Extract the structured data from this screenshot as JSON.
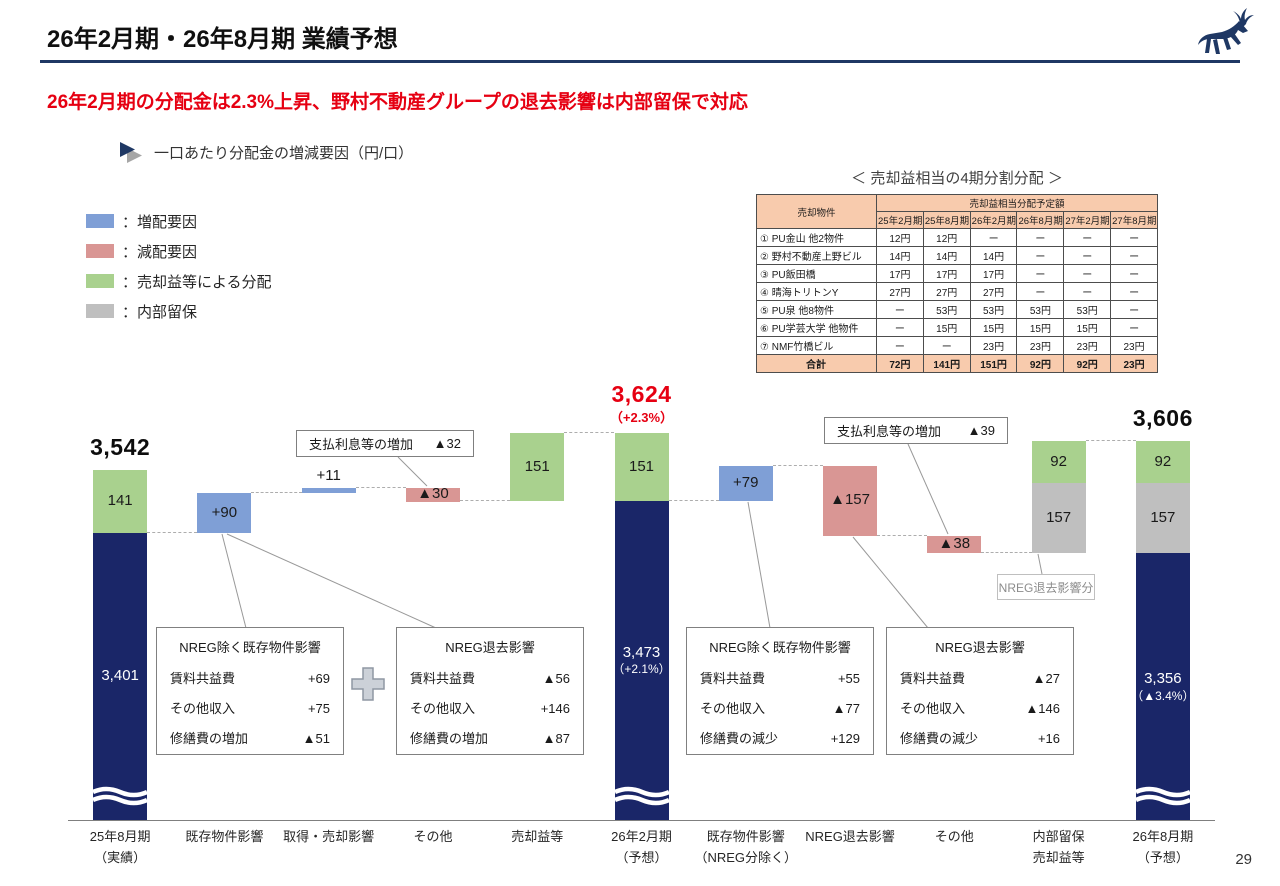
{
  "page": {
    "title": "26年2月期・26年8月期 業績予想",
    "subtitle": "26年2月期の分配金は2.3%上昇、野村不動産グループの退去影響は内部留保で対応",
    "page_number": "29"
  },
  "icons": {
    "logo": "deer-logo",
    "caption_marker": "arrow-right-icon",
    "combine": "plus-icon"
  },
  "chart_header": {
    "label": "一口あたり分配金の増減要因（円/口）"
  },
  "legend": [
    {
      "label": "：増配要因",
      "color": "#7f9fd6"
    },
    {
      "label": "：減配要因",
      "color": "#d99694"
    },
    {
      "label": "：売却益等による分配",
      "color": "#a9d18e"
    },
    {
      "label": "：内部留保",
      "color": "#bfbfbf"
    }
  ],
  "table": {
    "title": "＜ 売却益相当の4期分割分配 ＞",
    "header_property": "売却物件",
    "header_group": "売却益相当分配予定額",
    "periods": [
      "25年2月期",
      "25年8月期",
      "26年2月期",
      "26年8月期",
      "27年2月期",
      "27年8月期"
    ],
    "rows": [
      {
        "name": "① PU金山 他2物件",
        "values": [
          "12円",
          "12円",
          "ー",
          "ー",
          "ー",
          "ー"
        ]
      },
      {
        "name": "② 野村不動産上野ビル",
        "values": [
          "14円",
          "14円",
          "14円",
          "ー",
          "ー",
          "ー"
        ]
      },
      {
        "name": "③ PU飯田橋",
        "values": [
          "17円",
          "17円",
          "17円",
          "ー",
          "ー",
          "ー"
        ]
      },
      {
        "name": "④ 晴海トリトンY",
        "values": [
          "27円",
          "27円",
          "27円",
          "ー",
          "ー",
          "ー"
        ]
      },
      {
        "name": "⑤ PU泉 他8物件",
        "values": [
          "ー",
          "53円",
          "53円",
          "53円",
          "53円",
          "ー"
        ]
      },
      {
        "name": "⑥ PU学芸大学 他物件",
        "values": [
          "ー",
          "15円",
          "15円",
          "15円",
          "15円",
          "ー"
        ]
      },
      {
        "name": "⑦ NMF竹橋ビル",
        "values": [
          "ー",
          "ー",
          "23円",
          "23円",
          "23円",
          "23円"
        ]
      }
    ],
    "total": {
      "name": "合計",
      "values": [
        "72円",
        "141円",
        "151円",
        "92円",
        "92円",
        "23円"
      ]
    }
  },
  "chart_data": {
    "type": "bar",
    "subtype": "waterfall-stacked",
    "unit": "円/口",
    "axis_break": true,
    "colors": {
      "navy": "#1a2668",
      "blue": "#7f9fd6",
      "pink": "#d99694",
      "green": "#a9d18e",
      "gray": "#bfbfbf"
    },
    "columns": [
      {
        "id": "fy25aug-actual",
        "x_label": [
          "25年8月期",
          "（実績）"
        ],
        "total_label": "3,542",
        "segments": [
          {
            "color": "green",
            "from": 3401,
            "to": 3542,
            "label": "141"
          },
          {
            "color": "navy",
            "from": 3401,
            "to_axis": true,
            "label": "3,401",
            "break": true
          }
        ]
      },
      {
        "id": "existing-impact",
        "x_label": [
          "既存物件影響"
        ],
        "segments": [
          {
            "color": "blue",
            "from": 3401,
            "to": 3491,
            "label": "+90"
          }
        ]
      },
      {
        "id": "acq-sale-impact",
        "x_label": [
          "取得・売却影響"
        ],
        "segments": [
          {
            "color": "blue",
            "from": 3491,
            "to": 3502,
            "label": "+11",
            "label_above": true
          }
        ]
      },
      {
        "id": "other-1",
        "x_label": [
          "その他"
        ],
        "segments": [
          {
            "color": "pink",
            "from": 3502,
            "to": 3472,
            "label": "▲30"
          }
        ]
      },
      {
        "id": "gain-distribution-1",
        "x_label": [
          "売却益等"
        ],
        "segments": [
          {
            "color": "green",
            "from": 3473,
            "to": 3624,
            "label": "151"
          }
        ]
      },
      {
        "id": "fy26feb-forecast",
        "x_label": [
          "26年2月期",
          "（予想）"
        ],
        "total_label": "3,624",
        "total_sub": "（+2.3%）",
        "total_color": "red",
        "segments": [
          {
            "color": "green",
            "from": 3473,
            "to": 3624,
            "label": "151"
          },
          {
            "color": "navy",
            "from": 3473,
            "to_axis": true,
            "label": "3,473\n（+2.1%）",
            "break": true
          }
        ]
      },
      {
        "id": "existing-impact-ex-nreg",
        "x_label": [
          "既存物件影響",
          "（NREG分除く）"
        ],
        "segments": [
          {
            "color": "blue",
            "from": 3473,
            "to": 3552,
            "label": "+79"
          }
        ]
      },
      {
        "id": "nreg-withdrawal-impact",
        "x_label": [
          "NREG退去影響"
        ],
        "segments": [
          {
            "color": "pink",
            "from": 3552,
            "to": 3395,
            "label": "▲157"
          }
        ]
      },
      {
        "id": "other-2",
        "x_label": [
          "その他"
        ],
        "segments": [
          {
            "color": "pink",
            "from": 3395,
            "to": 3357,
            "label": "▲38"
          }
        ]
      },
      {
        "id": "retained-and-gain",
        "x_label": [
          "内部留保",
          "売却益等"
        ],
        "segments": [
          {
            "color": "green",
            "from": 3514,
            "to": 3606,
            "label": "92"
          },
          {
            "color": "gray",
            "from": 3357,
            "to": 3514,
            "label": "157"
          }
        ]
      },
      {
        "id": "fy26aug-forecast",
        "x_label": [
          "26年8月期",
          "（予想）"
        ],
        "total_label": "3,606",
        "segments": [
          {
            "color": "green",
            "from": 3514,
            "to": 3606,
            "label": "92"
          },
          {
            "color": "gray",
            "from": 3357,
            "to": 3514,
            "label": "157"
          },
          {
            "color": "navy",
            "from": 3357,
            "to_axis": true,
            "label": "3,356\n（▲3.4%）",
            "break": true
          }
        ]
      }
    ],
    "connectors": [
      {
        "from": 0,
        "to": 1,
        "level": 3401
      },
      {
        "from": 1,
        "to": 2,
        "level": 3491
      },
      {
        "from": 2,
        "to": 3,
        "level": 3502
      },
      {
        "from": 3,
        "to": 4,
        "level": 3473
      },
      {
        "from": 4,
        "to": 5,
        "level": 3624
      },
      {
        "from": 5,
        "to": 6,
        "level": 3473
      },
      {
        "from": 6,
        "to": 7,
        "level": 3552
      },
      {
        "from": 7,
        "to": 8,
        "level": 3395
      },
      {
        "from": 8,
        "to": 9,
        "level": 3357
      },
      {
        "from": 9,
        "to": 10,
        "level": 3606
      }
    ],
    "callouts": [
      {
        "id": "interest-note-1",
        "text": "支払利息等の増加",
        "value": "▲32"
      },
      {
        "id": "interest-note-2",
        "text": "支払利息等の増加",
        "value": "▲39"
      },
      {
        "id": "nreg-note",
        "text": "NREG退去影響分"
      }
    ],
    "detail_boxes": [
      {
        "id": "existing-ex-nreg-h1",
        "title": "NREG除く既存物件影響",
        "rows": [
          {
            "label": "賃料共益費",
            "value": "+69"
          },
          {
            "label": "その他収入",
            "value": "+75"
          },
          {
            "label": "修繕費の増加",
            "value": "▲51"
          }
        ]
      },
      {
        "id": "nreg-impact-h1",
        "title": "NREG退去影響",
        "rows": [
          {
            "label": "賃料共益費",
            "value": "▲56"
          },
          {
            "label": "その他収入",
            "value": "+146"
          },
          {
            "label": "修繕費の増加",
            "value": "▲87"
          }
        ]
      },
      {
        "id": "existing-ex-nreg-h2",
        "title": "NREG除く既存物件影響",
        "rows": [
          {
            "label": "賃料共益費",
            "value": "+55"
          },
          {
            "label": "その他収入",
            "value": "▲77"
          },
          {
            "label": "修繕費の減少",
            "value": "+129"
          }
        ]
      },
      {
        "id": "nreg-impact-h2",
        "title": "NREG退去影響",
        "rows": [
          {
            "label": "賃料共益費",
            "value": "▲27"
          },
          {
            "label": "その他収入",
            "value": "▲146"
          },
          {
            "label": "修繕費の減少",
            "value": "+16"
          }
        ]
      }
    ]
  }
}
